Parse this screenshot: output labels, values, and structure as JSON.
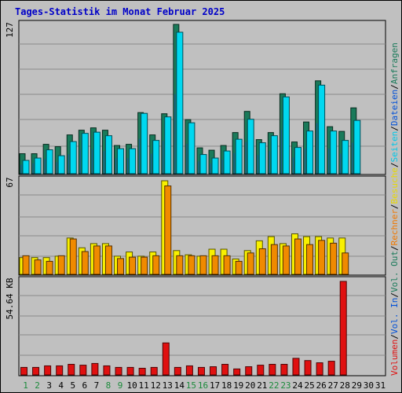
{
  "title": "Tages-Statistik im Monat Februar 2025",
  "colors": {
    "background": "#c0c0c0",
    "grid": "#8a8a8a",
    "hits": "#1a7a5a",
    "files": "#00d8f0",
    "pages": "#1a3fc0",
    "visits": "#f8f000",
    "sites": "#f08a00",
    "kbytes": "#e01010",
    "day_weekend": "#1a8a3a",
    "day_weekday": "#000000"
  },
  "right_legend": [
    {
      "text": "Anfragen",
      "color": "#1a7a5a"
    },
    {
      "text": "Dateien",
      "color": "#0050d8"
    },
    {
      "text": "Seiten",
      "color": "#00c8e8"
    },
    {
      "text": "Besuche",
      "color": "#e8d800"
    },
    {
      "text": "Rechner",
      "color": "#f07800"
    },
    {
      "text": "Vol. Out",
      "color": "#1a7a5a"
    },
    {
      "text": "Vol. In",
      "color": "#0050d8"
    },
    {
      "text": "Volumen",
      "color": "#e01010"
    }
  ],
  "chart_data": [
    {
      "type": "bar",
      "panel": "top",
      "categories": [
        "1",
        "2",
        "3",
        "4",
        "5",
        "6",
        "7",
        "8",
        "9",
        "10",
        "11",
        "12",
        "13",
        "14",
        "15",
        "16",
        "17",
        "18",
        "19",
        "20",
        "21",
        "22",
        "23",
        "24",
        "25",
        "26",
        "27",
        "28",
        "29",
        "30",
        "31"
      ],
      "y_max_label": "127",
      "ylim": [
        0,
        127
      ],
      "series": [
        {
          "name": "Anfragen",
          "values": [
            17,
            17,
            25,
            23,
            33,
            37,
            39,
            37,
            24,
            25,
            52,
            33,
            51,
            127,
            46,
            22,
            20,
            24,
            35,
            53,
            29,
            35,
            68,
            27,
            44,
            79,
            40,
            36,
            56,
            0,
            0
          ]
        },
        {
          "name": "Dateien",
          "values": [
            14,
            16,
            23,
            18,
            30,
            37,
            38,
            35,
            24,
            24,
            54,
            31,
            51,
            123,
            46,
            19,
            16,
            22,
            32,
            49,
            29,
            35,
            68,
            25,
            39,
            78,
            39,
            31,
            48,
            0,
            0
          ]
        },
        {
          "name": "Seiten",
          "values": [
            14,
            16,
            23,
            18,
            30,
            37,
            38,
            35,
            24,
            24,
            54,
            31,
            51,
            123,
            46,
            19,
            16,
            22,
            32,
            49,
            29,
            35,
            68,
            25,
            39,
            78,
            39,
            31,
            48,
            0,
            0
          ]
        }
      ]
    },
    {
      "type": "bar",
      "panel": "middle",
      "y_max_label": "67",
      "ylim": [
        0,
        67
      ],
      "series": [
        {
          "name": "Besuche",
          "values": [
            12,
            12,
            12,
            13,
            26,
            19,
            22,
            22,
            13,
            16,
            13,
            16,
            67,
            17,
            14,
            13,
            18,
            18,
            11,
            17,
            24,
            27,
            22,
            29,
            27,
            27,
            26,
            26,
            0,
            0,
            0
          ]
        },
        {
          "name": "Rechner",
          "values": [
            15,
            12,
            11,
            15,
            27,
            18,
            22,
            22,
            13,
            14,
            14,
            15,
            65,
            15,
            15,
            15,
            15,
            15,
            11,
            17,
            20,
            23,
            22,
            27,
            23,
            26,
            24,
            17,
            0,
            0,
            0
          ]
        }
      ]
    },
    {
      "type": "bar",
      "panel": "bottom",
      "y_max_label": "54.64 KB",
      "ylim": [
        0,
        54.64
      ],
      "series": [
        {
          "name": "Volumen",
          "values": [
            4.4,
            4.4,
            5.3,
            5.3,
            6.2,
            5.7,
            6.7,
            5.3,
            4.4,
            4.4,
            3.9,
            4.4,
            18.7,
            4.4,
            5.3,
            4.4,
            4.8,
            6.2,
            3.5,
            4.8,
            5.7,
            6.2,
            6.2,
            9.7,
            8.4,
            7.1,
            8.0,
            54.64,
            0,
            0,
            0
          ]
        }
      ]
    }
  ]
}
